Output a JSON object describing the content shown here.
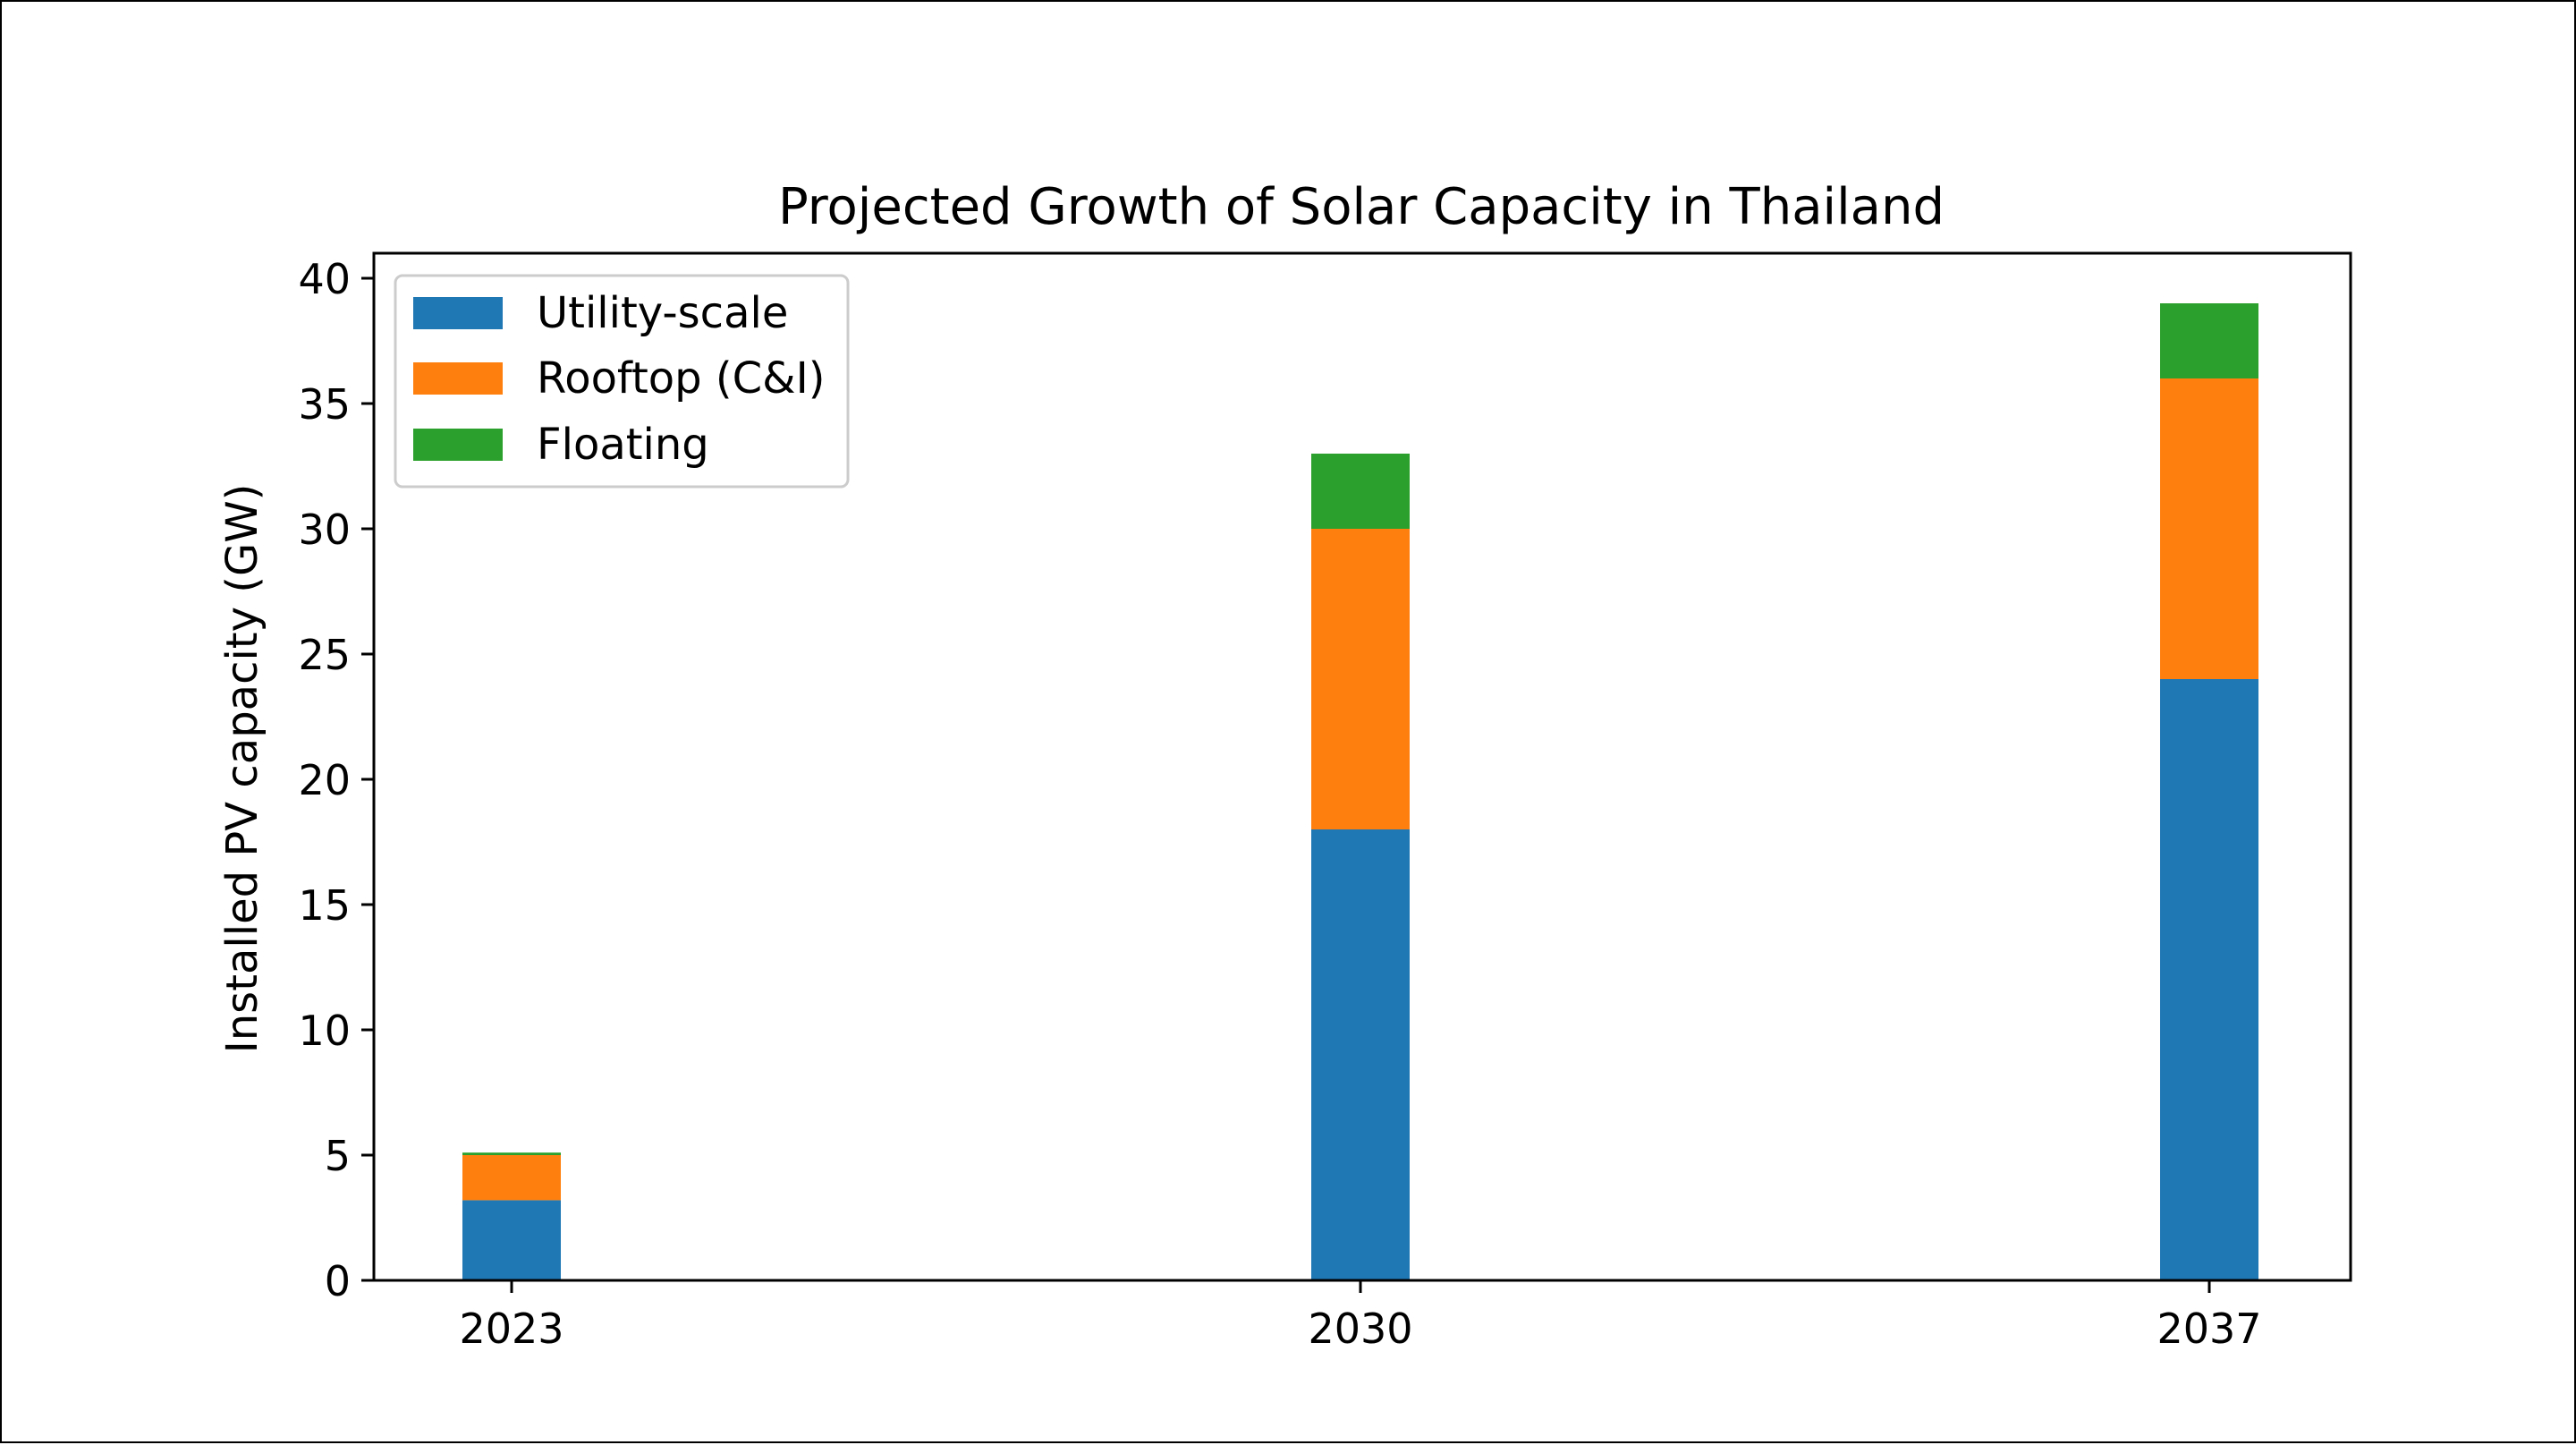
{
  "chart_data": {
    "type": "bar",
    "stacked": true,
    "title": "Projected Growth of Solar Capacity in Thailand",
    "xlabel": "",
    "ylabel": "Installed PV capacity (GW)",
    "categories": [
      "2023",
      "2030",
      "2037"
    ],
    "series": [
      {
        "name": "Utility-scale",
        "color": "#1f77b4",
        "values": [
          3.2,
          18,
          24
        ]
      },
      {
        "name": "Rooftop (C&I)",
        "color": "#ff7f0e",
        "values": [
          1.8,
          12,
          12
        ]
      },
      {
        "name": "Floating",
        "color": "#2ca02c",
        "values": [
          0.1,
          3,
          3
        ]
      }
    ],
    "ylim": [
      0,
      41
    ],
    "yticks": [
      "0",
      "5",
      "10",
      "15",
      "20",
      "25",
      "30",
      "35",
      "40"
    ],
    "legend_loc": "upper-left",
    "grid": false
  }
}
